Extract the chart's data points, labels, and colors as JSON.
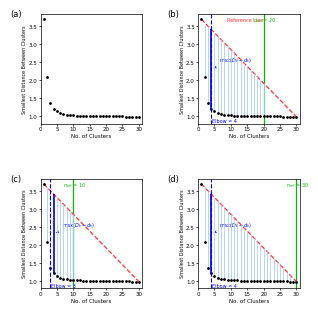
{
  "x_data": [
    1,
    2,
    3,
    4,
    5,
    6,
    7,
    8,
    9,
    10,
    11,
    12,
    13,
    14,
    15,
    16,
    17,
    18,
    19,
    20,
    21,
    22,
    23,
    24,
    25,
    26,
    27,
    28,
    29,
    30
  ],
  "y_data": [
    3.7,
    2.1,
    1.38,
    1.22,
    1.15,
    1.1,
    1.07,
    1.05,
    1.04,
    1.03,
    1.025,
    1.02,
    1.015,
    1.01,
    1.008,
    1.006,
    1.005,
    1.004,
    1.003,
    1.002,
    1.001,
    1.001,
    1.0,
    1.0,
    1.0,
    0.995,
    0.993,
    0.991,
    0.99,
    0.989
  ],
  "elbow_b": 4,
  "elbow_c": 3,
  "elbow_d": 4,
  "n_ref_b": 20,
  "n_ref_c": 10,
  "n_ref_d": 30,
  "ylim": [
    0.8,
    3.85
  ],
  "xlim": [
    0,
    31
  ],
  "xticks": [
    0,
    5,
    10,
    15,
    20,
    25,
    30
  ],
  "yticks": [
    1.0,
    1.5,
    2.0,
    2.5,
    3.0,
    3.5
  ],
  "ylabel": "Smallest Distance Between Clusters",
  "xlabel": "No. of Clusters",
  "dot_color": "black",
  "ref_color": "#FF3333",
  "blue_line_color": "#0000CC",
  "light_blue": "#AACCFF",
  "green_color": "#00BB00",
  "elbow_text_color": "blue"
}
